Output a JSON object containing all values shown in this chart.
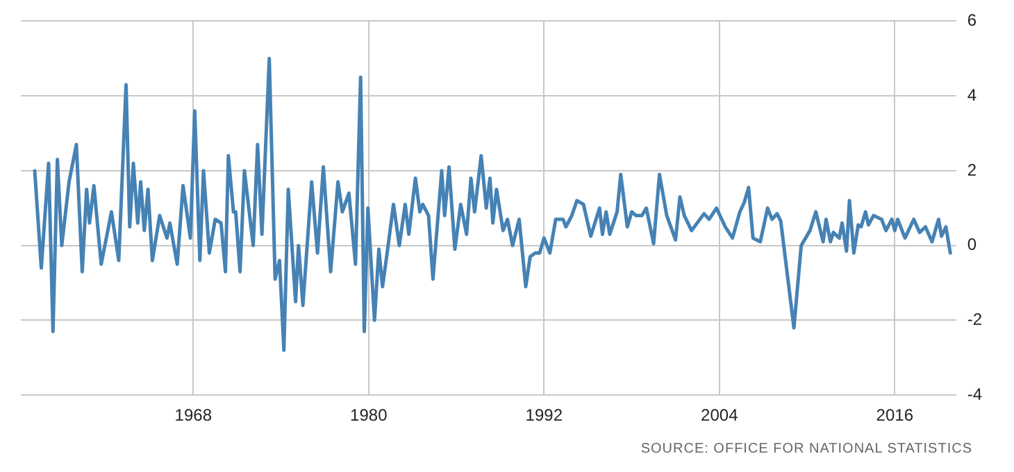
{
  "chart_data": {
    "type": "line",
    "x": [
      1957.15,
      1957.6,
      1958.1,
      1958.4,
      1958.7,
      1959.0,
      1959.5,
      1960.0,
      1960.4,
      1960.7,
      1960.9,
      1961.2,
      1961.7,
      1962.4,
      1962.9,
      1963.4,
      1963.65,
      1963.9,
      1964.2,
      1964.4,
      1964.65,
      1964.9,
      1965.2,
      1965.7,
      1966.2,
      1966.4,
      1966.9,
      1967.3,
      1967.8,
      1968.1,
      1968.45,
      1968.7,
      1969.1,
      1969.5,
      1969.9,
      1970.2,
      1970.4,
      1970.75,
      1970.9,
      1971.2,
      1971.5,
      1972.1,
      1972.4,
      1972.7,
      1973.2,
      1973.6,
      1973.9,
      1974.2,
      1974.5,
      1975.0,
      1975.2,
      1975.5,
      1976.1,
      1976.5,
      1976.9,
      1977.4,
      1977.9,
      1978.2,
      1978.65,
      1979.1,
      1979.45,
      1979.7,
      1979.95,
      1980.4,
      1980.7,
      1980.95,
      1981.3,
      1981.7,
      1982.1,
      1982.5,
      1982.75,
      1983.2,
      1983.5,
      1983.7,
      1984.1,
      1984.4,
      1985.0,
      1985.2,
      1985.5,
      1985.9,
      1986.3,
      1986.7,
      1987.0,
      1987.25,
      1987.7,
      1988.05,
      1988.3,
      1988.5,
      1988.75,
      1989.2,
      1989.5,
      1989.85,
      1990.3,
      1990.75,
      1991.05,
      1991.4,
      1991.7,
      1992.0,
      1992.4,
      1992.8,
      1993.3,
      1993.5,
      1993.9,
      1994.25,
      1994.7,
      1995.2,
      1995.8,
      1996.0,
      1996.25,
      1996.5,
      1997.0,
      1997.25,
      1997.7,
      1998.0,
      1998.3,
      1998.7,
      1999.0,
      1999.5,
      1999.9,
      2000.4,
      2001.0,
      2001.3,
      2001.6,
      2002.1,
      2002.95,
      2003.3,
      2003.8,
      2004.4,
      2004.9,
      2005.4,
      2005.7,
      2006.0,
      2006.3,
      2006.8,
      2007.3,
      2007.6,
      2007.95,
      2008.2,
      2009.1,
      2009.6,
      2010.2,
      2010.6,
      2011.1,
      2011.3,
      2011.6,
      2011.8,
      2012.2,
      2012.4,
      2012.7,
      2012.9,
      2013.2,
      2013.5,
      2013.7,
      2014.0,
      2014.2,
      2014.55,
      2015.1,
      2015.4,
      2015.8,
      2016.0,
      2016.2,
      2016.7,
      2017.3,
      2017.7,
      2018.1,
      2018.55,
      2019.0,
      2019.2,
      2019.5,
      2019.8
    ],
    "series": [
      {
        "color": "#4682b4",
        "values": [
          2.0,
          -0.6,
          2.2,
          -2.3,
          2.3,
          0,
          1.7,
          2.7,
          -0.7,
          1.5,
          0.6,
          1.6,
          -0.5,
          0.9,
          -0.4,
          4.3,
          0.5,
          2.2,
          0.6,
          1.7,
          0.4,
          1.5,
          -0.4,
          0.8,
          0.2,
          0.6,
          -0.5,
          1.6,
          0.2,
          3.6,
          -0.4,
          2.0,
          -0.2,
          0.7,
          0.6,
          -0.7,
          2.4,
          0.9,
          0.9,
          -0.7,
          2.0,
          0,
          2.7,
          0.3,
          5.0,
          -0.9,
          -0.4,
          -2.8,
          1.5,
          -1.5,
          0,
          -1.6,
          1.7,
          -0.2,
          2.1,
          -0.7,
          1.7,
          0.9,
          1.4,
          -0.5,
          4.5,
          -2.3,
          1.0,
          -2.0,
          -0.1,
          -1.1,
          -0.1,
          1.1,
          0,
          1.1,
          0.3,
          1.8,
          0.9,
          1.1,
          0.8,
          -0.9,
          2.0,
          0.8,
          2.1,
          -0.1,
          1.1,
          0.3,
          1.8,
          0.9,
          2.4,
          1.0,
          1.8,
          0.6,
          1.5,
          0.4,
          0.7,
          0,
          0.7,
          -1.1,
          -0.3,
          -0.2,
          -0.2,
          0.2,
          -0.2,
          0.7,
          0.7,
          0.5,
          0.8,
          1.2,
          1.1,
          0.25,
          1.0,
          0.3,
          0.9,
          0.3,
          0.9,
          1.9,
          0.5,
          0.9,
          0.8,
          0.8,
          1.0,
          0.05,
          1.9,
          0.8,
          0.15,
          1.3,
          0.8,
          0.4,
          0.85,
          0.7,
          1.0,
          0.5,
          0.2,
          0.9,
          1.15,
          1.55,
          0.2,
          0.1,
          1.0,
          0.7,
          0.85,
          0.65,
          -2.2,
          0,
          0.4,
          0.9,
          0.1,
          0.7,
          0.1,
          0.35,
          0.2,
          0.6,
          -0.15,
          1.2,
          -0.2,
          0.55,
          0.5,
          0.9,
          0.55,
          0.8,
          0.7,
          0.4,
          0.7,
          0.4,
          0.7,
          0.2,
          0.7,
          0.35,
          0.5,
          0.1,
          0.7,
          0.25,
          0.5,
          -0.2
        ]
      }
    ],
    "xlim": [
      1956.2,
      2020.2
    ],
    "xticks": [
      1968,
      1980,
      1992,
      2004,
      2016
    ],
    "ylim": [
      -4,
      6
    ],
    "yticks": [
      -4,
      -2,
      0,
      2,
      4,
      6
    ],
    "grid": true,
    "legend": false,
    "marker": "none",
    "line_style": "solid",
    "annotations": [
      "SOURCE: OFFICE FOR NATIONAL STATISTICS"
    ]
  }
}
